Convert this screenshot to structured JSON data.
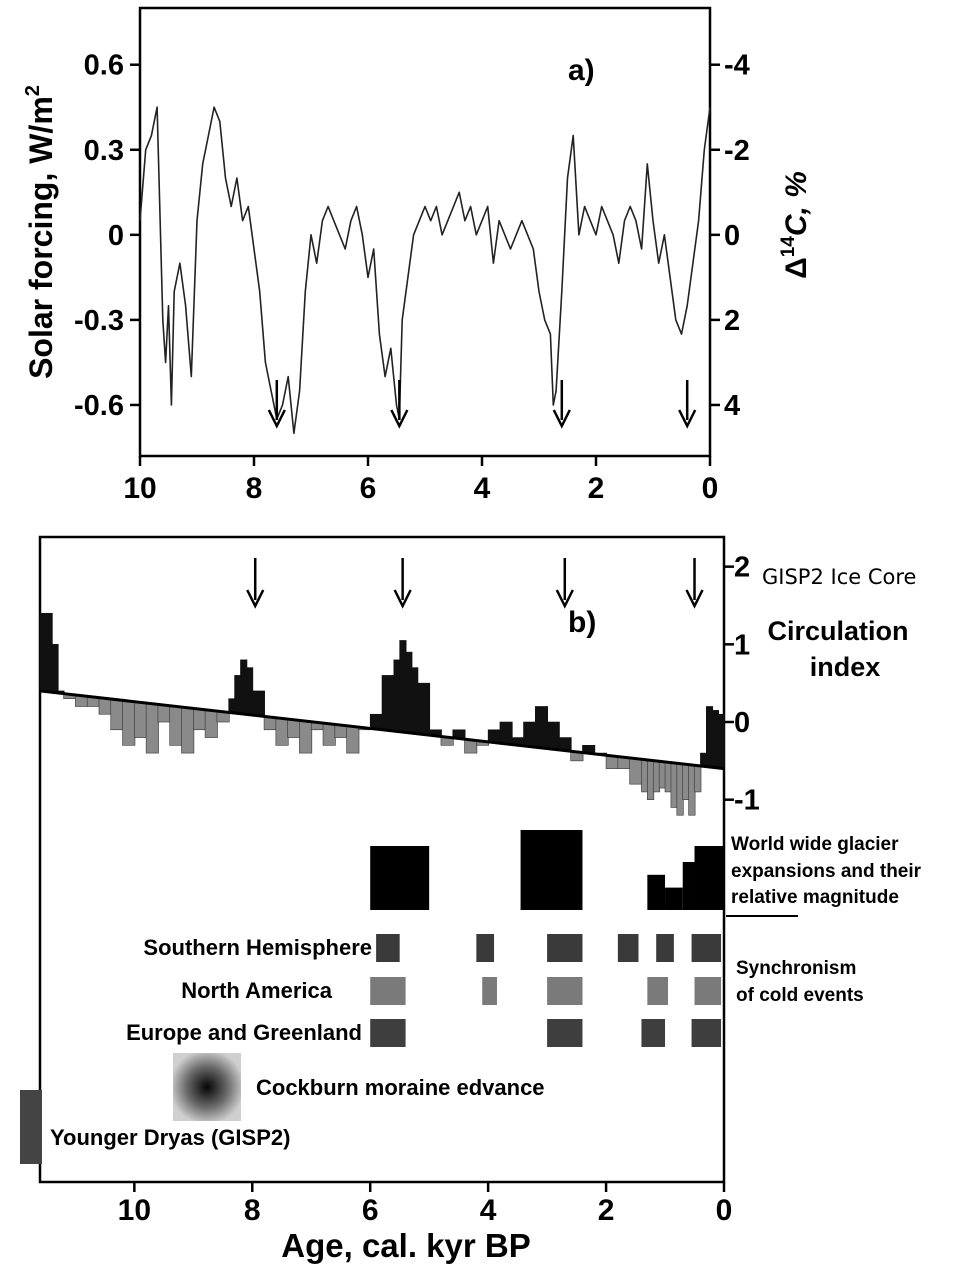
{
  "chart_data": [
    {
      "panel": "a)",
      "type": "line",
      "ylabel": "Solar forcing, W/m",
      "ylabel_sup": "2",
      "y2label": "Δ",
      "y2label_sup": "14",
      "y2label_rest": "C, %",
      "xlim": [
        10,
        0
      ],
      "ylim": [
        -0.78,
        0.8
      ],
      "yticks": [
        "0.6",
        "0.3",
        "0",
        "-0.3",
        "-0.6"
      ],
      "ytick_values": [
        0.6,
        0.3,
        0,
        -0.3,
        -0.6
      ],
      "y2ticks": [
        "-4",
        "-2",
        "0",
        "2",
        "4"
      ],
      "y2tick_values": [
        0.6,
        0.3,
        0,
        -0.3,
        -0.6
      ],
      "xticks": [
        "10",
        "8",
        "6",
        "4",
        "2",
        "0"
      ],
      "xtick_values": [
        10,
        8,
        6,
        4,
        2,
        0
      ],
      "arrows_x": [
        7.6,
        5.45,
        2.6,
        0.4
      ],
      "series": [
        {
          "x": [
            10.0,
            9.9,
            9.8,
            9.7,
            9.6,
            9.55,
            9.5,
            9.45,
            9.4,
            9.3,
            9.2,
            9.1,
            9.0,
            8.9,
            8.8,
            8.7,
            8.6,
            8.5,
            8.4,
            8.3,
            8.2,
            8.1,
            8.0,
            7.9,
            7.8,
            7.7,
            7.6,
            7.5,
            7.4,
            7.3,
            7.2,
            7.1,
            7.0,
            6.9,
            6.8,
            6.7,
            6.6,
            6.5,
            6.4,
            6.3,
            6.2,
            6.1,
            6.0,
            5.9,
            5.8,
            5.7,
            5.6,
            5.5,
            5.45,
            5.4,
            5.3,
            5.2,
            5.1,
            5.0,
            4.9,
            4.8,
            4.7,
            4.6,
            4.5,
            4.4,
            4.3,
            4.2,
            4.1,
            4.0,
            3.9,
            3.8,
            3.7,
            3.6,
            3.5,
            3.4,
            3.3,
            3.2,
            3.1,
            3.0,
            2.9,
            2.8,
            2.75,
            2.7,
            2.6,
            2.5,
            2.4,
            2.3,
            2.2,
            2.1,
            2.0,
            1.9,
            1.8,
            1.7,
            1.6,
            1.5,
            1.4,
            1.3,
            1.2,
            1.1,
            1.0,
            0.9,
            0.8,
            0.7,
            0.6,
            0.5,
            0.4,
            0.3,
            0.2,
            0.1,
            0.0
          ],
          "y": [
            0.05,
            0.3,
            0.35,
            0.45,
            -0.3,
            -0.45,
            -0.25,
            -0.6,
            -0.2,
            -0.1,
            -0.25,
            -0.5,
            0.05,
            0.25,
            0.35,
            0.45,
            0.4,
            0.2,
            0.1,
            0.2,
            0.05,
            0.1,
            -0.05,
            -0.2,
            -0.45,
            -0.55,
            -0.65,
            -0.6,
            -0.5,
            -0.7,
            -0.55,
            -0.2,
            0.0,
            -0.1,
            0.05,
            0.1,
            0.05,
            0.0,
            -0.05,
            0.05,
            0.1,
            0.0,
            -0.15,
            -0.05,
            -0.35,
            -0.5,
            -0.4,
            -0.6,
            -0.65,
            -0.3,
            -0.15,
            0.0,
            0.05,
            0.1,
            0.05,
            0.1,
            0.0,
            0.05,
            0.1,
            0.15,
            0.05,
            0.1,
            0.0,
            0.05,
            0.1,
            -0.1,
            0.05,
            0.0,
            -0.05,
            0.0,
            0.05,
            0.0,
            -0.05,
            -0.2,
            -0.3,
            -0.35,
            -0.6,
            -0.55,
            -0.2,
            0.2,
            0.35,
            0.0,
            0.1,
            0.05,
            0.0,
            0.1,
            0.05,
            0.0,
            -0.1,
            0.05,
            0.1,
            0.05,
            -0.05,
            0.25,
            0.05,
            -0.1,
            0.0,
            -0.15,
            -0.3,
            -0.35,
            -0.25,
            -0.1,
            0.05,
            0.3,
            0.45
          ]
        }
      ]
    },
    {
      "panel": "b)",
      "type": "area",
      "xlabel": "Age, cal. kyr BP",
      "xlim": [
        11.6,
        0
      ],
      "ylim": [
        -1.3,
        2.15
      ],
      "yticks": [
        "2",
        "1",
        "0",
        "-1"
      ],
      "ytick_values": [
        2,
        1,
        0,
        -1
      ],
      "xticks": [
        "10",
        "8",
        "6",
        "4",
        "2",
        "0"
      ],
      "xtick_values": [
        10,
        8,
        6,
        4,
        2,
        0
      ],
      "arrows_x": [
        7.95,
        5.45,
        2.7,
        0.5
      ],
      "trend": {
        "x": [
          11.6,
          0
        ],
        "y": [
          0.4,
          -0.6
        ]
      },
      "series": [
        {
          "name": "GISP2 Ice Core Circulation index",
          "x": [
            11.6,
            11.4,
            11.3,
            11.2,
            11.0,
            10.8,
            10.6,
            10.4,
            10.2,
            10.0,
            9.8,
            9.6,
            9.4,
            9.2,
            9.0,
            8.8,
            8.6,
            8.4,
            8.3,
            8.2,
            8.1,
            8.0,
            7.8,
            7.6,
            7.4,
            7.2,
            7.0,
            6.8,
            6.6,
            6.4,
            6.2,
            6.0,
            5.8,
            5.6,
            5.5,
            5.4,
            5.3,
            5.2,
            5.0,
            4.8,
            4.6,
            4.4,
            4.2,
            4.0,
            3.8,
            3.6,
            3.4,
            3.2,
            3.0,
            2.8,
            2.6,
            2.4,
            2.2,
            2.0,
            1.8,
            1.6,
            1.4,
            1.3,
            1.2,
            1.1,
            1.0,
            0.9,
            0.8,
            0.7,
            0.6,
            0.5,
            0.4,
            0.3,
            0.2,
            0.1,
            0.0
          ],
          "y": [
            1.4,
            1.0,
            0.4,
            0.3,
            0.2,
            0.2,
            0.1,
            -0.1,
            -0.3,
            -0.2,
            -0.4,
            0.0,
            -0.3,
            -0.4,
            -0.1,
            -0.2,
            0.0,
            0.3,
            0.6,
            0.8,
            0.7,
            0.4,
            -0.1,
            -0.3,
            -0.2,
            -0.4,
            -0.1,
            -0.3,
            -0.2,
            -0.4,
            -0.1,
            0.1,
            0.6,
            0.8,
            1.05,
            0.9,
            0.7,
            0.5,
            -0.1,
            -0.3,
            -0.1,
            -0.4,
            -0.3,
            -0.1,
            0.0,
            -0.2,
            0.0,
            0.2,
            0.0,
            -0.2,
            -0.5,
            -0.3,
            -0.4,
            -0.6,
            -0.6,
            -0.8,
            -0.9,
            -1.0,
            -0.9,
            -0.85,
            -0.9,
            -1.1,
            -1.2,
            -1.0,
            -1.2,
            -0.9,
            -0.4,
            0.2,
            0.15,
            0.1,
            0.0
          ]
        }
      ],
      "y_labels": {
        "top": "GISP2 Ice Core",
        "mid1": "Circulation",
        "mid2": "index"
      },
      "glacier_label_lines": [
        "World wide glacier",
        "expansions and their",
        "relative magnitude"
      ],
      "glacier_blocks": [
        {
          "x0": 6.0,
          "x1": 5.0,
          "h": 1.0
        },
        {
          "x0": 3.45,
          "x1": 2.4,
          "h": 1.25
        },
        {
          "x0": 1.3,
          "x1": 1.0,
          "h": 0.55
        },
        {
          "x0": 1.0,
          "x1": 0.7,
          "h": 0.35
        },
        {
          "x0": 0.7,
          "x1": 0.5,
          "h": 0.75
        },
        {
          "x0": 0.5,
          "x1": 0.0,
          "h": 1.0
        }
      ],
      "synchronism_label_lines": [
        "Synchronism",
        "of cold events"
      ],
      "regions": [
        {
          "name": "Southern Hemisphere",
          "color": "#3a3a3a",
          "bands": [
            [
              5.9,
              5.5
            ],
            [
              4.2,
              3.9
            ],
            [
              3.0,
              2.4
            ],
            [
              1.8,
              1.45
            ],
            [
              1.15,
              0.85
            ],
            [
              0.55,
              0.05
            ]
          ]
        },
        {
          "name": "North America",
          "color": "#7a7a7a",
          "bands": [
            [
              6.0,
              5.4
            ],
            [
              4.1,
              3.85
            ],
            [
              3.0,
              2.4
            ],
            [
              1.3,
              0.95
            ],
            [
              0.5,
              0.05
            ]
          ]
        },
        {
          "name": "Europe and Greenland",
          "color": "#3e3e3e",
          "bands": [
            [
              6.0,
              5.4
            ],
            [
              3.0,
              2.4
            ],
            [
              1.4,
              1.0
            ],
            [
              0.55,
              0.05
            ]
          ]
        }
      ],
      "cockburn_label": "Cockburn moraine edvance",
      "younger_dryas_label": "Younger Dryas (GISP2)"
    }
  ]
}
